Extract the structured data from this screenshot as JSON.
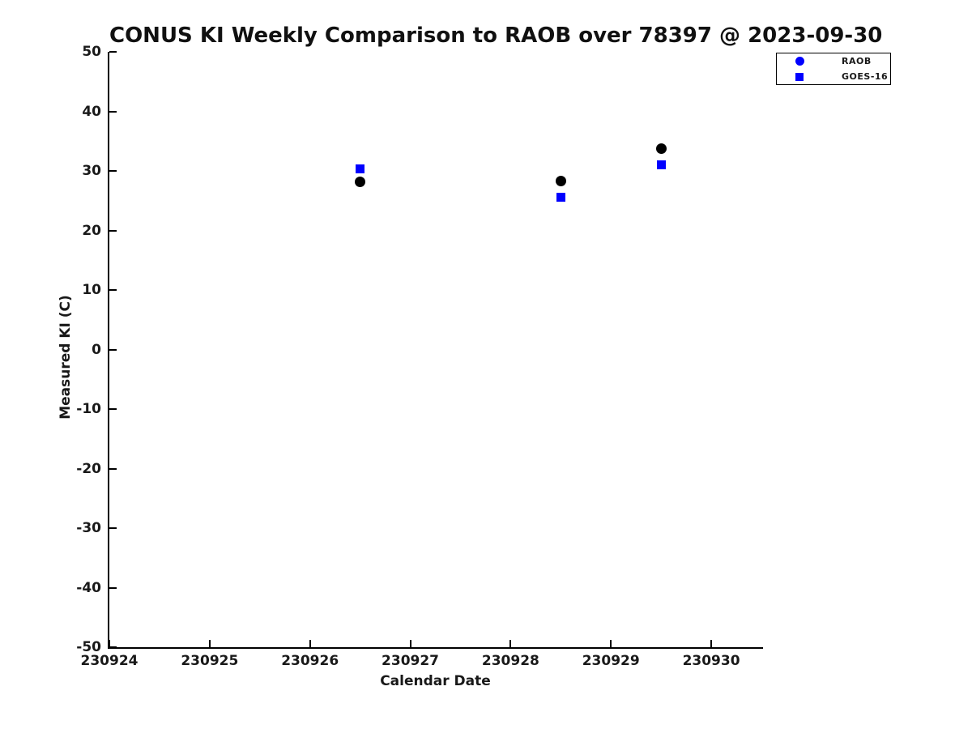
{
  "chart_data": {
    "type": "scatter",
    "title": "CONUS KI Weekly Comparison to RAOB over 78397 @ 2023-09-30",
    "xlabel": "Calendar Date",
    "ylabel": "Measured KI (C)",
    "xlim": [
      230924,
      230930.5
    ],
    "ylim": [
      -50,
      50
    ],
    "x_ticks": [
      230924,
      230925,
      230926,
      230927,
      230928,
      230929,
      230930
    ],
    "y_ticks": [
      50,
      40,
      30,
      20,
      10,
      0,
      -10,
      -20,
      -30,
      -40,
      -50
    ],
    "grid": false,
    "legend_position": "outside-top-right",
    "series": [
      {
        "name": "RAOB",
        "marker": "circle",
        "plot_color": "#000000",
        "legend_color": "#0000ff",
        "x": [
          230926.5,
          230928.5,
          230929.5
        ],
        "y": [
          28.2,
          28.3,
          33.7
        ]
      },
      {
        "name": "GOES-16",
        "marker": "square",
        "plot_color": "#0000ff",
        "legend_color": "#0000ff",
        "x": [
          230926.5,
          230928.5,
          230929.5
        ],
        "y": [
          30.3,
          25.6,
          31.0
        ]
      }
    ],
    "colors": {
      "axis": "#000000",
      "text": "#191919",
      "background": "#ffffff"
    }
  }
}
